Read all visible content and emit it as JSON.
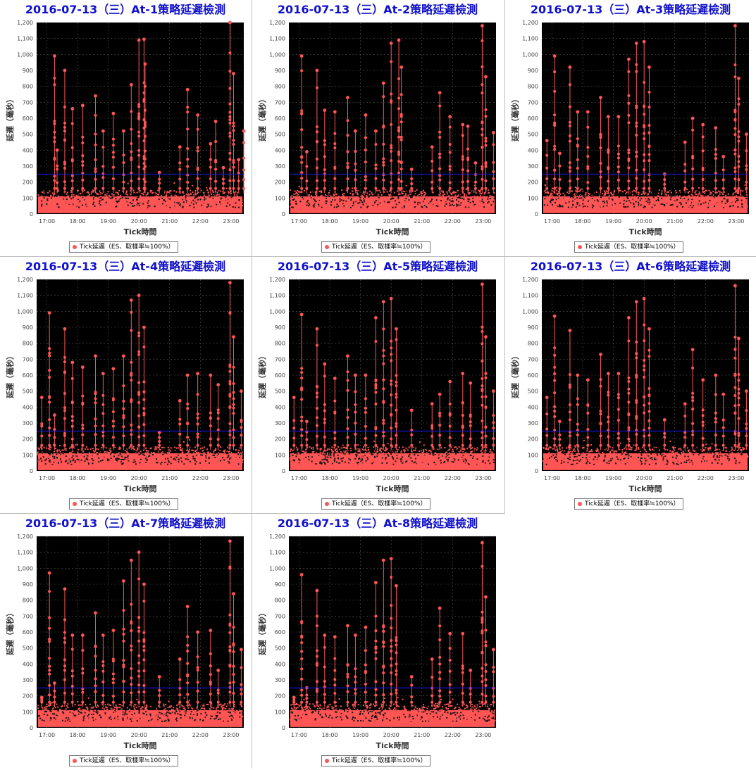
{
  "chart_data": [
    {
      "type": "scatter",
      "title": "2016-07-13（三）At-1策略延遲檢測",
      "xlabel": "Tick時間",
      "ylabel": "延遲（毫秒）",
      "legend": "Tick延遲（ES、取樣率≒100%）",
      "legend_position": "bottom-center",
      "ylim": [
        0,
        1200
      ],
      "xlim": [
        "16:40",
        "23:25"
      ],
      "x_ticks": [
        "17:00",
        "18:00",
        "19:00",
        "20:00",
        "21:00",
        "22:00",
        "23:00"
      ],
      "y_ticks": [
        "0",
        "100",
        "200",
        "300",
        "400",
        "500",
        "600",
        "700",
        "800",
        "900",
        "1,000",
        "1,100",
        "1,200"
      ],
      "threshold": 250,
      "series_color": "#ff5555",
      "threshold_color": "#1a1aff",
      "grid": true,
      "baseline_band": [
        40,
        150
      ],
      "spikes": [
        [
          "17:15",
          990
        ],
        [
          "17:20",
          400
        ],
        [
          "17:35",
          900
        ],
        [
          "17:50",
          660
        ],
        [
          "18:10",
          680
        ],
        [
          "18:35",
          740
        ],
        [
          "18:50",
          520
        ],
        [
          "19:10",
          630
        ],
        [
          "19:30",
          520
        ],
        [
          "19:45",
          810
        ],
        [
          "20:00",
          1090
        ],
        [
          "20:10",
          1095
        ],
        [
          "20:12",
          940
        ],
        [
          "20:40",
          260
        ],
        [
          "21:20",
          420
        ],
        [
          "21:35",
          780
        ],
        [
          "21:55",
          620
        ],
        [
          "22:20",
          440
        ],
        [
          "22:30",
          580
        ],
        [
          "22:45",
          290
        ],
        [
          "22:58",
          1200
        ],
        [
          "23:05",
          880
        ],
        [
          "23:15",
          340
        ],
        [
          "23:25",
          520
        ]
      ]
    },
    {
      "type": "scatter",
      "title": "2016-07-13（三）At-2策略延遲檢測",
      "xlabel": "Tick時間",
      "ylabel": "延遲（毫秒）",
      "legend": "Tick延遲（ES、取樣率≒100%）",
      "legend_position": "bottom-center",
      "ylim": [
        0,
        1200
      ],
      "xlim": [
        "16:40",
        "23:25"
      ],
      "x_ticks": [
        "17:00",
        "18:00",
        "19:00",
        "20:00",
        "21:00",
        "22:00",
        "23:00"
      ],
      "y_ticks": [
        "0",
        "100",
        "200",
        "300",
        "400",
        "500",
        "600",
        "700",
        "800",
        "900",
        "1,000",
        "1,100",
        "1,200"
      ],
      "threshold": 250,
      "series_color": "#ff5555",
      "threshold_color": "#1a1aff",
      "grid": true,
      "baseline_band": [
        40,
        150
      ],
      "spikes": [
        [
          "17:05",
          990
        ],
        [
          "17:15",
          390
        ],
        [
          "17:35",
          900
        ],
        [
          "17:50",
          650
        ],
        [
          "18:10",
          640
        ],
        [
          "18:35",
          730
        ],
        [
          "18:50",
          520
        ],
        [
          "19:10",
          620
        ],
        [
          "19:30",
          520
        ],
        [
          "19:45",
          820
        ],
        [
          "20:00",
          1070
        ],
        [
          "20:15",
          1090
        ],
        [
          "20:20",
          920
        ],
        [
          "20:40",
          280
        ],
        [
          "21:20",
          420
        ],
        [
          "21:35",
          760
        ],
        [
          "21:55",
          610
        ],
        [
          "22:20",
          560
        ],
        [
          "22:30",
          550
        ],
        [
          "22:45",
          320
        ],
        [
          "22:58",
          1180
        ],
        [
          "23:05",
          860
        ],
        [
          "23:20",
          510
        ]
      ]
    },
    {
      "type": "scatter",
      "title": "2016-07-13（三）At-3策略延遲檢測",
      "xlabel": "Tick時間",
      "ylabel": "延遲（毫秒）",
      "legend": "Tick延遲（ES、取樣率≒100%）",
      "legend_position": "bottom-center",
      "ylim": [
        0,
        1200
      ],
      "xlim": [
        "16:40",
        "23:25"
      ],
      "x_ticks": [
        "17:00",
        "18:00",
        "19:00",
        "20:00",
        "21:00",
        "22:00",
        "23:00"
      ],
      "y_ticks": [
        "0",
        "100",
        "200",
        "300",
        "400",
        "500",
        "600",
        "700",
        "800",
        "900",
        "1,000",
        "1,100",
        "1,200"
      ],
      "threshold": 250,
      "series_color": "#ff5555",
      "threshold_color": "#1a1aff",
      "grid": true,
      "baseline_band": [
        40,
        150
      ],
      "spikes": [
        [
          "16:50",
          460
        ],
        [
          "17:05",
          990
        ],
        [
          "17:15",
          380
        ],
        [
          "17:35",
          920
        ],
        [
          "17:50",
          640
        ],
        [
          "18:10",
          640
        ],
        [
          "18:35",
          730
        ],
        [
          "18:50",
          610
        ],
        [
          "19:10",
          610
        ],
        [
          "19:30",
          970
        ],
        [
          "19:45",
          1070
        ],
        [
          "20:00",
          1080
        ],
        [
          "20:10",
          920
        ],
        [
          "20:40",
          250
        ],
        [
          "21:20",
          450
        ],
        [
          "21:35",
          600
        ],
        [
          "21:55",
          560
        ],
        [
          "22:20",
          540
        ],
        [
          "22:35",
          360
        ],
        [
          "22:58",
          1180
        ],
        [
          "23:05",
          850
        ],
        [
          "23:20",
          500
        ]
      ]
    },
    {
      "type": "scatter",
      "title": "2016-07-13（三）At-4策略延遲檢測",
      "xlabel": "Tick時間",
      "ylabel": "延遲（毫秒）",
      "legend": "Tick延遲（ES、取樣率≒100%）",
      "legend_position": "bottom-center",
      "ylim": [
        0,
        1200
      ],
      "xlim": [
        "16:40",
        "23:25"
      ],
      "x_ticks": [
        "17:00",
        "18:00",
        "19:00",
        "20:00",
        "21:00",
        "22:00",
        "23:00"
      ],
      "y_ticks": [
        "0",
        "100",
        "200",
        "300",
        "400",
        "500",
        "600",
        "700",
        "800",
        "900",
        "1,000",
        "1,100",
        "1,200"
      ],
      "threshold": 250,
      "series_color": "#ff5555",
      "threshold_color": "#1a1aff",
      "grid": true,
      "baseline_band": [
        40,
        150
      ],
      "spikes": [
        [
          "16:50",
          460
        ],
        [
          "17:05",
          990
        ],
        [
          "17:15",
          350
        ],
        [
          "17:35",
          890
        ],
        [
          "17:50",
          680
        ],
        [
          "18:10",
          650
        ],
        [
          "18:35",
          720
        ],
        [
          "18:50",
          610
        ],
        [
          "19:10",
          640
        ],
        [
          "19:30",
          720
        ],
        [
          "19:45",
          1070
        ],
        [
          "20:00",
          1100
        ],
        [
          "20:10",
          900
        ],
        [
          "20:40",
          240
        ],
        [
          "21:20",
          440
        ],
        [
          "21:35",
          600
        ],
        [
          "21:55",
          610
        ],
        [
          "22:20",
          600
        ],
        [
          "22:35",
          540
        ],
        [
          "22:58",
          1180
        ],
        [
          "23:05",
          840
        ],
        [
          "23:20",
          500
        ]
      ]
    },
    {
      "type": "scatter",
      "title": "2016-07-13（三）At-5策略延遲檢測",
      "xlabel": "Tick時間",
      "ylabel": "延遲（毫秒）",
      "legend": "Tick延遲（ES、取樣率≒100%）",
      "legend_position": "bottom-center",
      "ylim": [
        0,
        1200
      ],
      "xlim": [
        "16:40",
        "23:25"
      ],
      "x_ticks": [
        "17:00",
        "18:00",
        "19:00",
        "20:00",
        "21:00",
        "22:00",
        "23:00"
      ],
      "y_ticks": [
        "0",
        "100",
        "200",
        "300",
        "400",
        "500",
        "600",
        "700",
        "800",
        "900",
        "1,000",
        "1,100",
        "1,200"
      ],
      "threshold": 250,
      "series_color": "#ff5555",
      "threshold_color": "#1a1aff",
      "grid": true,
      "baseline_band": [
        40,
        150
      ],
      "spikes": [
        [
          "16:50",
          460
        ],
        [
          "17:05",
          980
        ],
        [
          "17:15",
          310
        ],
        [
          "17:35",
          890
        ],
        [
          "17:50",
          670
        ],
        [
          "18:10",
          580
        ],
        [
          "18:35",
          720
        ],
        [
          "18:50",
          600
        ],
        [
          "19:10",
          600
        ],
        [
          "19:30",
          960
        ],
        [
          "19:45",
          1060
        ],
        [
          "20:00",
          1080
        ],
        [
          "20:10",
          890
        ],
        [
          "20:40",
          380
        ],
        [
          "21:20",
          420
        ],
        [
          "21:35",
          480
        ],
        [
          "21:55",
          560
        ],
        [
          "22:20",
          610
        ],
        [
          "22:35",
          550
        ],
        [
          "22:58",
          1170
        ],
        [
          "23:05",
          840
        ],
        [
          "23:20",
          500
        ]
      ]
    },
    {
      "type": "scatter",
      "title": "2016-07-13（三）At-6策略延遲檢測",
      "xlabel": "Tick時間",
      "ylabel": "延遲（毫秒）",
      "legend": "Tick延遲（ES、取樣率≒100%）",
      "legend_position": "bottom-center",
      "ylim": [
        0,
        1200
      ],
      "xlim": [
        "16:40",
        "23:25"
      ],
      "x_ticks": [
        "17:00",
        "18:00",
        "19:00",
        "20:00",
        "21:00",
        "22:00",
        "23:00"
      ],
      "y_ticks": [
        "0",
        "100",
        "200",
        "300",
        "400",
        "500",
        "600",
        "700",
        "800",
        "900",
        "1,000",
        "1,100",
        "1,200"
      ],
      "threshold": 250,
      "series_color": "#ff5555",
      "threshold_color": "#1a1aff",
      "grid": true,
      "baseline_band": [
        40,
        150
      ],
      "spikes": [
        [
          "16:50",
          460
        ],
        [
          "17:05",
          970
        ],
        [
          "17:15",
          310
        ],
        [
          "17:35",
          880
        ],
        [
          "17:50",
          600
        ],
        [
          "18:10",
          570
        ],
        [
          "18:35",
          730
        ],
        [
          "18:50",
          610
        ],
        [
          "19:10",
          610
        ],
        [
          "19:30",
          960
        ],
        [
          "19:45",
          1060
        ],
        [
          "20:00",
          1080
        ],
        [
          "20:10",
          890
        ],
        [
          "20:40",
          320
        ],
        [
          "21:20",
          420
        ],
        [
          "21:35",
          760
        ],
        [
          "21:55",
          570
        ],
        [
          "22:20",
          600
        ],
        [
          "22:35",
          480
        ],
        [
          "22:58",
          1160
        ],
        [
          "23:05",
          830
        ],
        [
          "23:20",
          500
        ]
      ]
    },
    {
      "type": "scatter",
      "title": "2016-07-13（三）At-7策略延遲檢測",
      "xlabel": "Tick時間",
      "ylabel": "延遲（毫秒）",
      "legend": "Tick延遲（ES、取樣率≒100%）",
      "legend_position": "bottom-center",
      "ylim": [
        0,
        1200
      ],
      "xlim": [
        "16:40",
        "23:25"
      ],
      "x_ticks": [
        "17:00",
        "18:00",
        "19:00",
        "20:00",
        "21:00",
        "22:00",
        "23:00"
      ],
      "y_ticks": [
        "0",
        "100",
        "200",
        "300",
        "400",
        "500",
        "600",
        "700",
        "800",
        "900",
        "1,000",
        "1,100",
        "1,200"
      ],
      "threshold": 250,
      "series_color": "#ff5555",
      "threshold_color": "#1a1aff",
      "grid": true,
      "baseline_band": [
        40,
        150
      ],
      "spikes": [
        [
          "16:50",
          190
        ],
        [
          "17:05",
          970
        ],
        [
          "17:15",
          280
        ],
        [
          "17:35",
          870
        ],
        [
          "17:50",
          580
        ],
        [
          "18:10",
          580
        ],
        [
          "18:35",
          720
        ],
        [
          "18:50",
          580
        ],
        [
          "19:10",
          610
        ],
        [
          "19:30",
          920
        ],
        [
          "19:45",
          1050
        ],
        [
          "20:00",
          1100
        ],
        [
          "20:10",
          900
        ],
        [
          "20:40",
          320
        ],
        [
          "21:20",
          430
        ],
        [
          "21:35",
          760
        ],
        [
          "21:55",
          600
        ],
        [
          "22:20",
          610
        ],
        [
          "22:35",
          360
        ],
        [
          "22:58",
          1170
        ],
        [
          "23:05",
          840
        ],
        [
          "23:20",
          490
        ]
      ]
    },
    {
      "type": "scatter",
      "title": "2016-07-13（三）At-8策略延遲檢測",
      "xlabel": "Tick時間",
      "ylabel": "延遲（毫秒）",
      "legend": "Tick延遲（ES、取樣率≒100%）",
      "legend_position": "bottom-center",
      "ylim": [
        0,
        1200
      ],
      "xlim": [
        "16:40",
        "23:25"
      ],
      "x_ticks": [
        "17:00",
        "18:00",
        "19:00",
        "20:00",
        "21:00",
        "22:00",
        "23:00"
      ],
      "y_ticks": [
        "0",
        "100",
        "200",
        "300",
        "400",
        "500",
        "600",
        "700",
        "800",
        "900",
        "1,000",
        "1,100",
        "1,200"
      ],
      "threshold": 250,
      "series_color": "#ff5555",
      "threshold_color": "#1a1aff",
      "grid": true,
      "baseline_band": [
        40,
        150
      ],
      "spikes": [
        [
          "16:50",
          190
        ],
        [
          "17:05",
          960
        ],
        [
          "17:15",
          250
        ],
        [
          "17:35",
          860
        ],
        [
          "17:50",
          580
        ],
        [
          "18:10",
          570
        ],
        [
          "18:35",
          640
        ],
        [
          "18:50",
          580
        ],
        [
          "19:10",
          630
        ],
        [
          "19:30",
          910
        ],
        [
          "19:45",
          1050
        ],
        [
          "20:00",
          1060
        ],
        [
          "20:10",
          890
        ],
        [
          "20:40",
          320
        ],
        [
          "21:20",
          430
        ],
        [
          "21:35",
          750
        ],
        [
          "21:55",
          590
        ],
        [
          "22:20",
          590
        ],
        [
          "22:35",
          360
        ],
        [
          "22:58",
          1160
        ],
        [
          "23:05",
          820
        ],
        [
          "23:20",
          490
        ]
      ]
    }
  ]
}
